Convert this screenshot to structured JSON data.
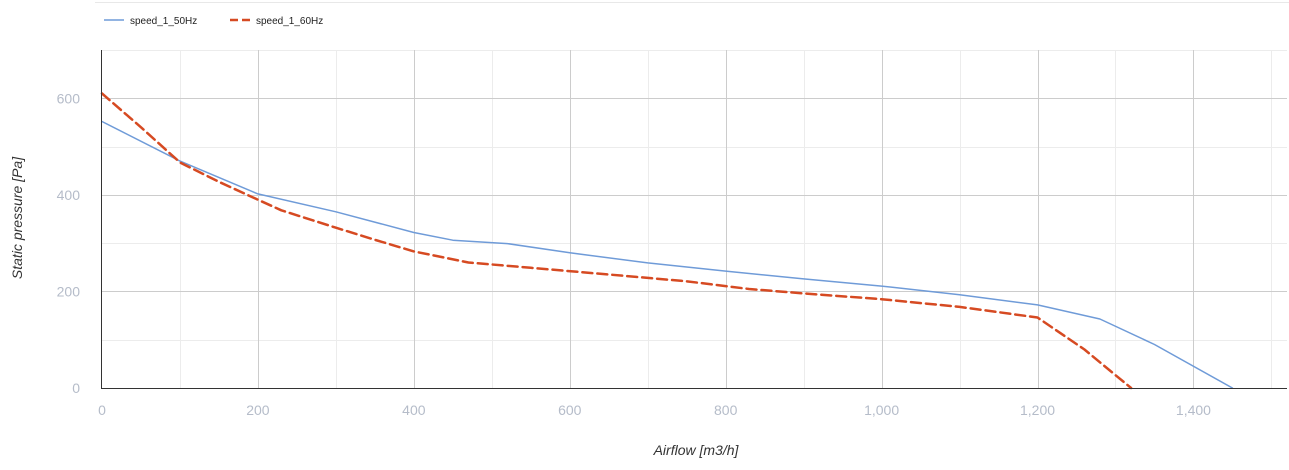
{
  "chart_data": {
    "type": "line",
    "title": "",
    "xlabel": "Airflow [m3/h]",
    "ylabel": "Static pressure [Pa]",
    "xlim": [
      0,
      1520
    ],
    "ylim": [
      0,
      700
    ],
    "x_ticks": [
      0,
      200,
      400,
      600,
      800,
      1000,
      1200,
      1400
    ],
    "x_tick_labels": [
      "0",
      "200",
      "400",
      "600",
      "800",
      "1,000",
      "1,200",
      "1,400"
    ],
    "x_minor_ticks": [
      100,
      300,
      500,
      700,
      900,
      1100,
      1300,
      1500
    ],
    "y_ticks": [
      0,
      200,
      400,
      600
    ],
    "y_tick_labels": [
      "0",
      "200",
      "400",
      "600"
    ],
    "y_minor_ticks": [
      100,
      300,
      500,
      700
    ],
    "grid": true,
    "legend_position": "top-left",
    "series": [
      {
        "name": "speed_1_50Hz",
        "color": "#6f9bd8",
        "style": "solid",
        "x": [
          0,
          100,
          200,
          300,
          400,
          450,
          520,
          600,
          700,
          800,
          900,
          1000,
          1100,
          1200,
          1280,
          1350,
          1450
        ],
        "y": [
          552,
          470,
          402,
          365,
          322,
          306,
          299,
          280,
          259,
          242,
          226,
          211,
          193,
          172,
          143,
          90,
          0
        ]
      },
      {
        "name": "speed_1_60Hz",
        "color": "#d64a22",
        "style": "dashed",
        "x": [
          0,
          50,
          100,
          150,
          200,
          230,
          300,
          350,
          400,
          470,
          550,
          650,
          750,
          830,
          900,
          1000,
          1100,
          1200,
          1260,
          1320
        ],
        "y": [
          610,
          540,
          467,
          427,
          390,
          368,
          332,
          307,
          283,
          260,
          249,
          235,
          221,
          205,
          196,
          184,
          168,
          146,
          80,
          0
        ]
      }
    ]
  }
}
